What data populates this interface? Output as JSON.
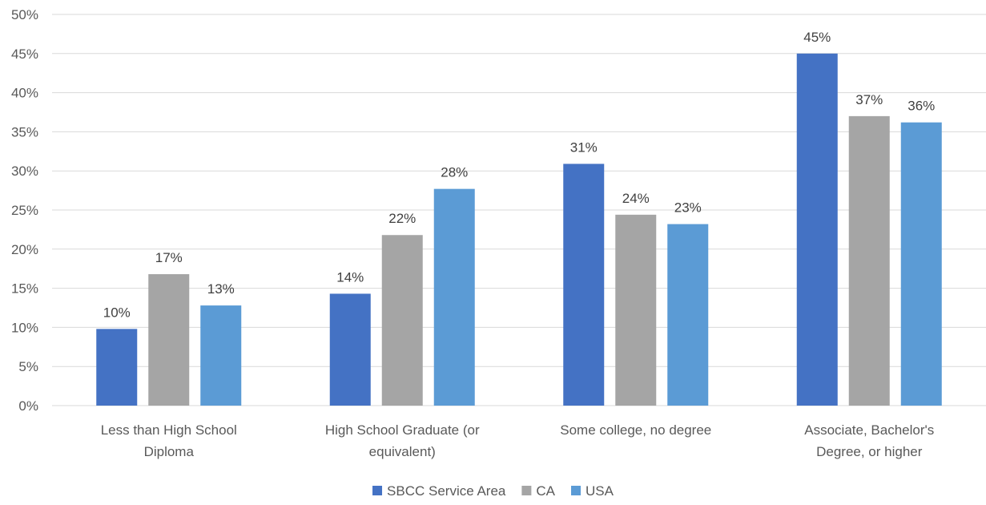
{
  "chart_data": {
    "type": "bar",
    "categories": [
      [
        "Less than High School",
        "Diploma"
      ],
      [
        "High School Graduate (or",
        "equivalent)"
      ],
      [
        "Some college, no degree"
      ],
      [
        "Associate, Bachelor's",
        "Degree, or higher"
      ]
    ],
    "series": [
      {
        "name": "SBCC Service Area",
        "color": "#4472c4",
        "values": [
          9.8,
          14.3,
          30.9,
          45.0
        ],
        "labels": [
          "10%",
          "14%",
          "31%",
          "45%"
        ]
      },
      {
        "name": "CA",
        "color": "#a5a5a5",
        "values": [
          16.8,
          21.8,
          24.4,
          37.0
        ],
        "labels": [
          "17%",
          "22%",
          "24%",
          "37%"
        ]
      },
      {
        "name": "USA",
        "color": "#5b9bd5",
        "values": [
          12.8,
          27.7,
          23.2,
          36.2
        ],
        "labels": [
          "13%",
          "28%",
          "23%",
          "36%"
        ]
      }
    ],
    "ylim": [
      0,
      50
    ],
    "yticks": [
      "0%",
      "5%",
      "10%",
      "15%",
      "20%",
      "25%",
      "30%",
      "35%",
      "40%",
      "45%",
      "50%"
    ],
    "grid": true,
    "legend": "bottom-center"
  }
}
